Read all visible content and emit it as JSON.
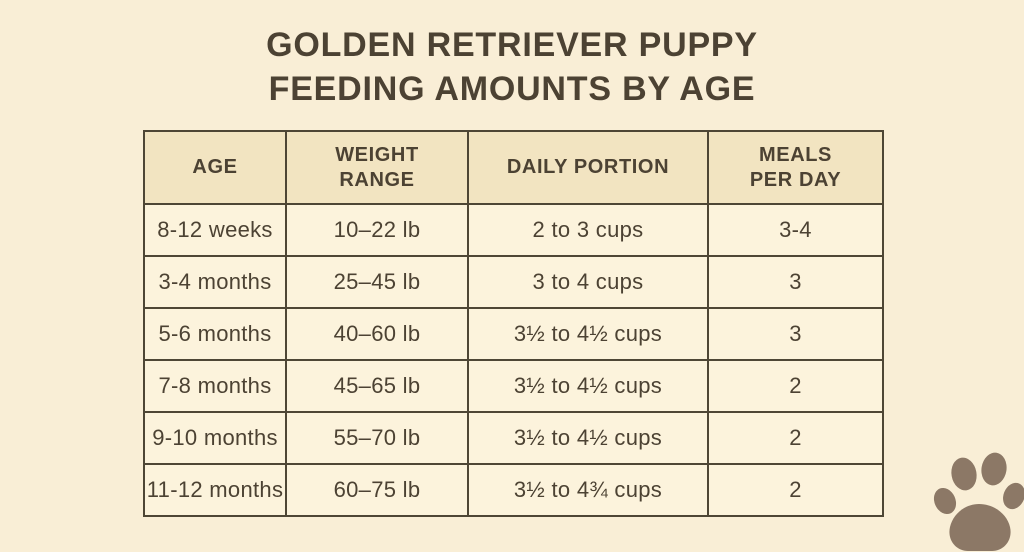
{
  "title": {
    "line1": "GOLDEN RETRIEVER PUPPY",
    "line2": "FEEDING AMOUNTS BY AGE"
  },
  "table": {
    "headers": [
      "AGE",
      "WEIGHT\nRANGE",
      "DAILY PORTION",
      "MEALS\nPER DAY"
    ],
    "rows": [
      [
        "8-12 weeks",
        "10–22 lb",
        "2 to 3 cups",
        "3-4"
      ],
      [
        "3-4 months",
        "25–45 lb",
        "3 to 4 cups",
        "3"
      ],
      [
        "5-6 months",
        "40–60 lb",
        "3½ to 4½ cups",
        "3"
      ],
      [
        "7-8 months",
        "45–65 lb",
        "3½ to 4½ cups",
        "2"
      ],
      [
        "9-10 months",
        "55–70 lb",
        "3½ to 4½ cups",
        "2"
      ],
      [
        "11-12 months",
        "60–75 lb",
        "3½ to 4¾ cups",
        "2"
      ]
    ]
  },
  "chart_data": {
    "type": "table",
    "title": "GOLDEN RETRIEVER PUPPY FEEDING AMOUNTS BY AGE",
    "columns": [
      "AGE",
      "WEIGHT RANGE",
      "DAILY PORTION",
      "MEALS PER DAY"
    ],
    "rows": [
      [
        "8-12 weeks",
        "10–22 lb",
        "2 to 3 cups",
        "3-4"
      ],
      [
        "3-4 months",
        "25–45 lb",
        "3 to 4 cups",
        "3"
      ],
      [
        "5-6 months",
        "40–60 lb",
        "3½ to 4½ cups",
        "3"
      ],
      [
        "7-8 months",
        "45–65 lb",
        "3½ to 4½ cups",
        "2"
      ],
      [
        "9-10 months",
        "55–70 lb",
        "3½ to 4½ cups",
        "2"
      ],
      [
        "11-12 months",
        "60–75 lb",
        "3½ to 4¾ cups",
        "2"
      ]
    ]
  },
  "icons": {
    "paw": "paw-print-icon"
  },
  "colors": {
    "background": "#f9eed6",
    "header_bg": "#f2e4c1",
    "cell_bg": "#fcf3dc",
    "border": "#4e4635",
    "text": "#4c4233",
    "paw": "#8c7866"
  }
}
